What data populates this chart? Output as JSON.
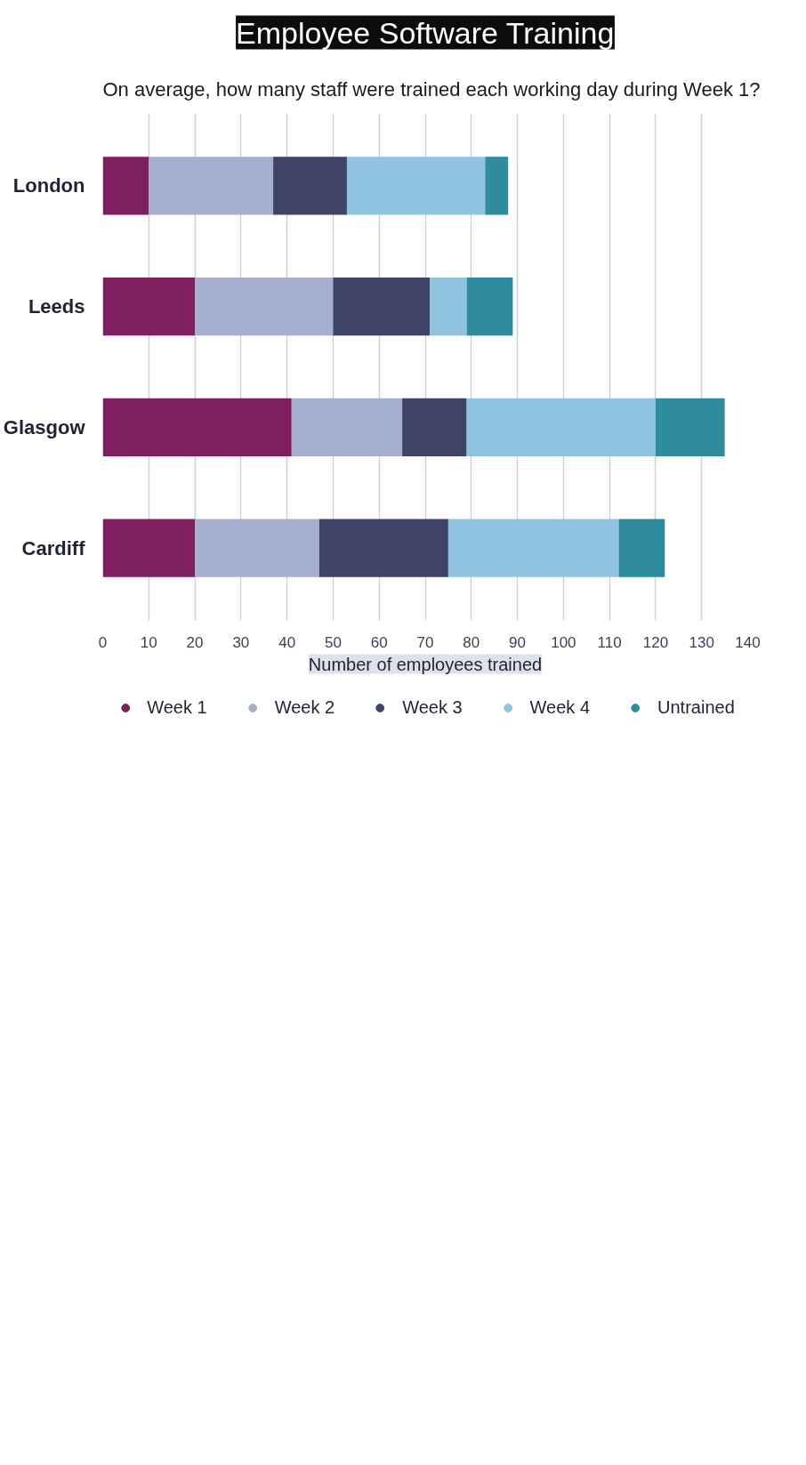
{
  "chart_data": {
    "type": "bar",
    "orientation": "horizontal",
    "stacked": true,
    "title": "Employee Software Training",
    "xlabel": "Number of employees trained",
    "annotations": [
      "On average, how many staff were trained each working day during Week 1?"
    ],
    "categories": [
      "London",
      "Leeds",
      "Glasgow",
      "Cardiff"
    ],
    "series": [
      {
        "name": "Week 1",
        "color": "#7e1f60",
        "values": [
          10,
          20,
          41,
          20
        ]
      },
      {
        "name": "Week 2",
        "color": "#a6aed0",
        "values": [
          27,
          30,
          24,
          27
        ]
      },
      {
        "name": "Week 3",
        "color": "#3d4468",
        "values": [
          16,
          21,
          14,
          28
        ]
      },
      {
        "name": "Week 4",
        "color": "#8fc3e0",
        "values": [
          30,
          8,
          41,
          37
        ]
      },
      {
        "name": "Untrained",
        "color": "#2e8c9c",
        "values": [
          5,
          10,
          15,
          10
        ]
      }
    ],
    "xlim": [
      0,
      140
    ],
    "xticks": [
      0,
      10,
      20,
      30,
      40,
      50,
      60,
      70,
      80,
      90,
      100,
      110,
      120,
      130,
      140
    ],
    "grid": "x",
    "legend": "bottom"
  }
}
